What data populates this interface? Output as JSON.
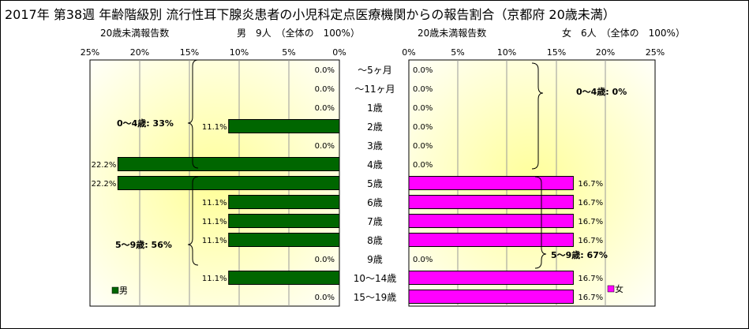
{
  "title": "2017年 第38週 年齢階級別 流行性耳下腺炎患者の小児科定点医療機関からの報告割合（京都府 20歳未満）",
  "male_panel": {
    "subtitle_left": "20歳未満報告数",
    "subtitle_right": "男　9人　（全体の　100%）",
    "ticks": [
      "25%",
      "20%",
      "15%",
      "10%",
      "5%",
      "0%"
    ],
    "legend": "男",
    "group_label_0_4": "0～4歳: 33%",
    "group_label_5_9": "5～9歳: 56%",
    "bar_color": "#006600"
  },
  "female_panel": {
    "subtitle_left": "20歳未満報告数",
    "subtitle_right": "女　6人　（全体の　100%）",
    "ticks": [
      "0%",
      "5%",
      "10%",
      "15%",
      "20%",
      "25%"
    ],
    "legend": "女",
    "group_label_0_4": "0～4歳: 0%",
    "group_label_5_9": "5～9歳: 67%",
    "bar_color": "#ff00ff"
  },
  "chart_data": [
    {
      "type": "bar",
      "orientation": "horizontal",
      "series": [
        {
          "name": "男",
          "values": [
            0.0,
            0.0,
            0.0,
            11.1,
            0.0,
            22.2,
            22.2,
            11.1,
            11.1,
            11.1,
            0.0,
            11.1,
            0.0
          ]
        }
      ],
      "data_labels": [
        "0.0%",
        "0.0%",
        "0.0%",
        "11.1%",
        "0.0%",
        "22.2%",
        "22.2%",
        "11.1%",
        "11.1%",
        "11.1%",
        "0.0%",
        "11.1%",
        "0.0%"
      ],
      "categories": [
        "～5ヶ月",
        "～11ヶ月",
        "1歳",
        "2歳",
        "3歳",
        "4歳",
        "5歳",
        "6歳",
        "7歳",
        "8歳",
        "9歳",
        "10～14歳",
        "15～19歳"
      ],
      "xlim": [
        0,
        25
      ],
      "x_reversed": true,
      "grid": true
    },
    {
      "type": "bar",
      "orientation": "horizontal",
      "series": [
        {
          "name": "女",
          "values": [
            0.0,
            0.0,
            0.0,
            0.0,
            0.0,
            0.0,
            16.7,
            16.7,
            16.7,
            16.7,
            0.0,
            16.7,
            16.7
          ]
        }
      ],
      "data_labels": [
        "0.0%",
        "0.0%",
        "0.0%",
        "0.0%",
        "0.0%",
        "0.0%",
        "16.7%",
        "16.7%",
        "16.7%",
        "16.7%",
        "0.0%",
        "16.7%",
        "16.7%"
      ],
      "categories": [
        "～5ヶ月",
        "～11ヶ月",
        "1歳",
        "2歳",
        "3歳",
        "4歳",
        "5歳",
        "6歳",
        "7歳",
        "8歳",
        "9歳",
        "10～14歳",
        "15～19歳"
      ],
      "xlim": [
        0,
        25
      ],
      "grid": true
    }
  ]
}
